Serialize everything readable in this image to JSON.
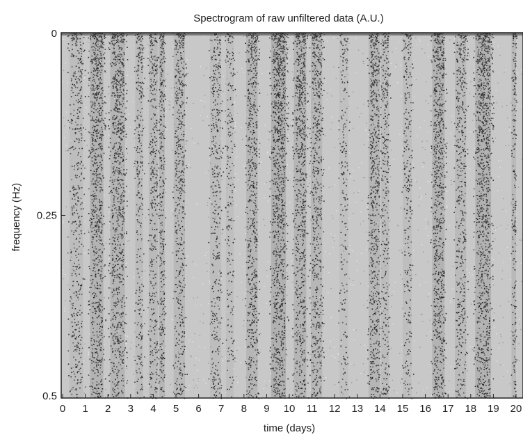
{
  "chart_data": {
    "type": "heatmap",
    "title": "Spectrogram of raw unfiltered data (A.U.)",
    "xlabel": "time (days)",
    "ylabel": "frequency (Hz)",
    "xlim": [
      0,
      20.3
    ],
    "ylim": [
      0,
      0.5
    ],
    "y_axis_inverted": true,
    "x_ticks": [
      "0",
      "1",
      "2",
      "3",
      "4",
      "5",
      "6",
      "7",
      "8",
      "9",
      "10",
      "11",
      "12",
      "13",
      "14",
      "15",
      "16",
      "17",
      "18",
      "19",
      "20"
    ],
    "y_ticks": [
      "0",
      "0.25",
      "0.5"
    ],
    "y_tick_values": [
      0,
      0.25,
      0.5
    ],
    "colormap": "grayscale",
    "grid": false,
    "colors": {
      "background": "#c8c8c8",
      "dark": "#2a2a2a",
      "light": "#dcdcdc"
    },
    "dark_bands": [
      {
        "start": 0.3,
        "end": 0.9,
        "intensity": 0.45
      },
      {
        "start": 1.2,
        "end": 1.8,
        "intensity": 0.85
      },
      {
        "start": 2.1,
        "end": 2.75,
        "intensity": 0.8
      },
      {
        "start": 3.2,
        "end": 3.55,
        "intensity": 0.5
      },
      {
        "start": 3.8,
        "end": 4.2,
        "intensity": 0.55
      },
      {
        "start": 4.25,
        "end": 4.5,
        "intensity": 0.75
      },
      {
        "start": 4.9,
        "end": 5.4,
        "intensity": 0.6
      },
      {
        "start": 6.5,
        "end": 7.0,
        "intensity": 0.45
      },
      {
        "start": 7.2,
        "end": 7.55,
        "intensity": 0.35
      },
      {
        "start": 8.1,
        "end": 8.6,
        "intensity": 0.75
      },
      {
        "start": 9.2,
        "end": 9.85,
        "intensity": 0.95
      },
      {
        "start": 10.2,
        "end": 10.75,
        "intensity": 0.8
      },
      {
        "start": 10.95,
        "end": 11.45,
        "intensity": 0.7
      },
      {
        "start": 12.2,
        "end": 12.6,
        "intensity": 0.3
      },
      {
        "start": 13.5,
        "end": 14.0,
        "intensity": 0.75
      },
      {
        "start": 14.05,
        "end": 14.4,
        "intensity": 0.5
      },
      {
        "start": 15.0,
        "end": 15.4,
        "intensity": 0.4
      },
      {
        "start": 16.3,
        "end": 16.85,
        "intensity": 0.85
      },
      {
        "start": 17.3,
        "end": 17.8,
        "intensity": 0.55
      },
      {
        "start": 18.2,
        "end": 18.9,
        "intensity": 0.9
      },
      {
        "start": 19.8,
        "end": 20.0,
        "intensity": 0.6
      }
    ]
  }
}
